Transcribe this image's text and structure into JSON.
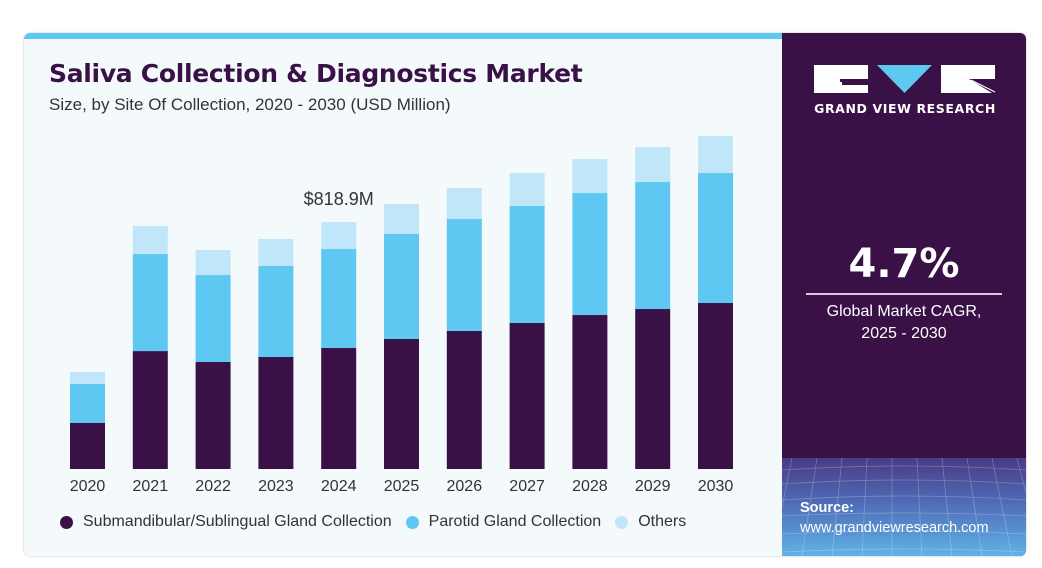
{
  "header": {
    "title": "Saliva Collection & Diagnostics Market",
    "subtitle": "Size, by Site Of Collection, 2020 - 2030 (USD Million)"
  },
  "brand": {
    "name": "GRAND VIEW RESEARCH",
    "logo_icon": "gvr-logo-icon"
  },
  "cagr": {
    "value": "4.7%",
    "label_line1": "Global Market CAGR,",
    "label_line2": "2025 - 2030"
  },
  "source": {
    "label": "Source:",
    "url": "www.grandviewresearch.com"
  },
  "colors": {
    "dark_purple": "#3a1146",
    "parotid_blue": "#5ec8f2",
    "others_lightblue": "#bfe7f9",
    "accent_bar": "#5ec8f0"
  },
  "chart_data": {
    "type": "bar",
    "stacked": true,
    "title": "Saliva Collection & Diagnostics Market",
    "subtitle": "Size, by Site Of Collection, 2020 - 2030 (USD Million)",
    "xlabel": "",
    "ylabel": "",
    "ylim": [
      0,
      1150
    ],
    "grid": false,
    "legend_position": "bottom",
    "categories": [
      "2020",
      "2021",
      "2022",
      "2023",
      "2024",
      "2025",
      "2026",
      "2027",
      "2028",
      "2029",
      "2030"
    ],
    "series": [
      {
        "name": "Submandibular/Sublingual Gland Collection",
        "color": "#3a1146",
        "values": [
          152.5,
          391.0,
          354.7,
          371.3,
          401.1,
          431.0,
          457.5,
          484.0,
          510.5,
          530.4,
          550.3
        ]
      },
      {
        "name": "Parotid Gland Collection",
        "color": "#5ec8f2",
        "values": [
          129.3,
          321.6,
          288.4,
          301.7,
          328.2,
          348.1,
          371.3,
          387.9,
          404.4,
          421.0,
          431.0
        ]
      },
      {
        "name": "Others",
        "color": "#bfe7f9",
        "values": [
          39.8,
          92.8,
          82.9,
          89.5,
          89.5,
          99.5,
          102.8,
          109.4,
          112.7,
          116.0,
          122.7
        ]
      }
    ],
    "annotations": [
      {
        "category": "2024",
        "text": "$818.9M"
      }
    ]
  }
}
